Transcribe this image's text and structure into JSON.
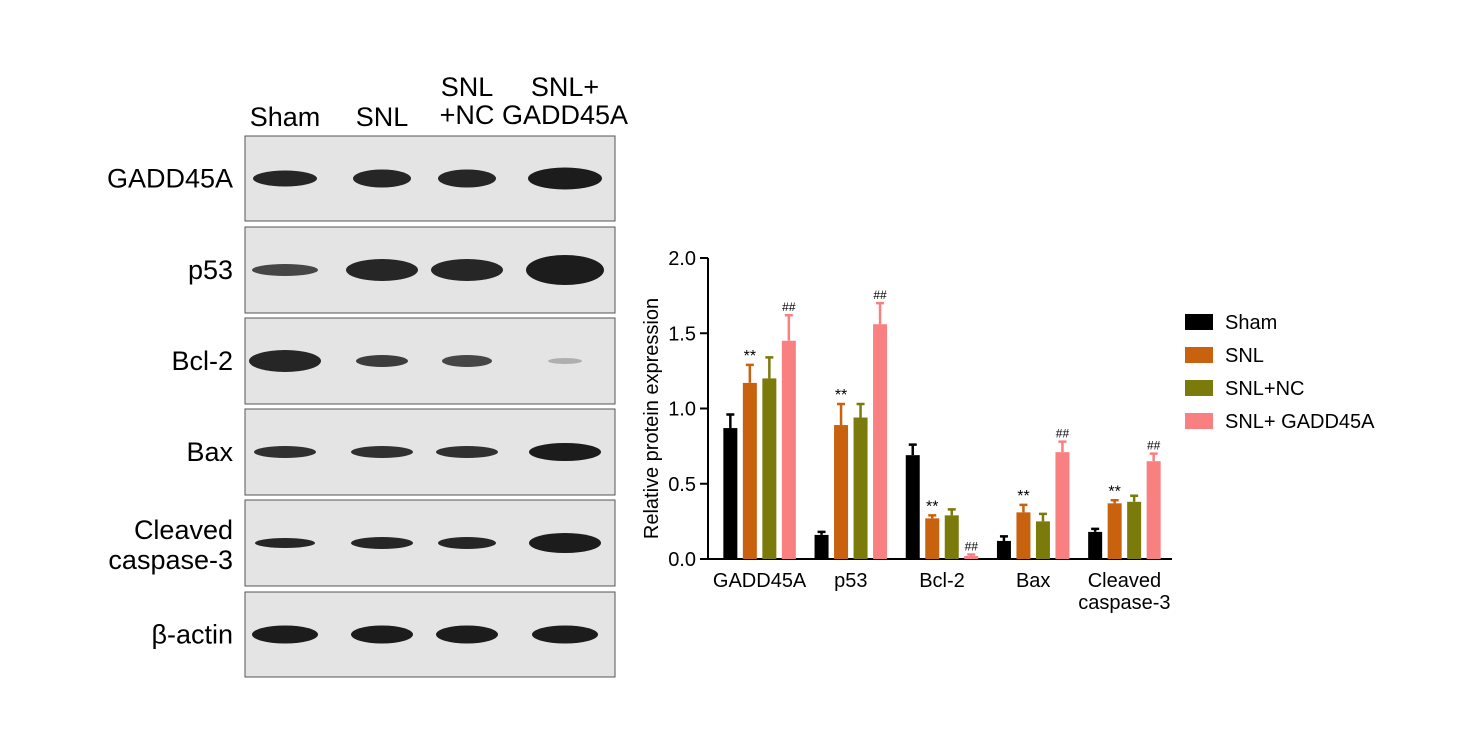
{
  "blot": {
    "lanes": [
      "Sham",
      "SNL",
      "SNL\n+NC",
      "SNL+\nGADD45A"
    ],
    "proteins": [
      "GADD45A",
      "p53",
      "Bcl-2",
      "Bax",
      "Cleaved\ncaspase-3",
      "β-actin"
    ]
  },
  "chart_data": {
    "type": "bar",
    "y_label": "Relative protein expression",
    "categories": [
      "GADD45A",
      "p53",
      "Bcl-2",
      "Bax",
      "Cleaved\ncaspase-3"
    ],
    "ylim": [
      0,
      2
    ],
    "yticks": [
      {
        "value": 0,
        "label": "0.0"
      },
      {
        "value": 0.5,
        "label": "0.5"
      },
      {
        "value": 1,
        "label": "1.0"
      },
      {
        "value": 1.5,
        "label": "1.5"
      },
      {
        "value": 2,
        "label": "2.0"
      }
    ],
    "series": [
      {
        "name": "Sham",
        "color": "#000000",
        "values": [
          0.87,
          0.16,
          0.69,
          0.12,
          0.18
        ],
        "errors": [
          0.09,
          0.02,
          0.07,
          0.03,
          0.02
        ]
      },
      {
        "name": "SNL",
        "color": "#c8620f",
        "values": [
          1.17,
          0.89,
          0.27,
          0.31,
          0.37
        ],
        "errors": [
          0.12,
          0.14,
          0.02,
          0.05,
          0.02
        ],
        "annotations": [
          "**",
          "**",
          "**",
          "**",
          "**"
        ]
      },
      {
        "name": "SNL+NC",
        "color": "#7b7b0c",
        "values": [
          1.2,
          0.94,
          0.29,
          0.25,
          0.38
        ],
        "errors": [
          0.14,
          0.09,
          0.04,
          0.05,
          0.04
        ]
      },
      {
        "name": "SNL+ GADD45A",
        "color": "#f88080",
        "values": [
          1.45,
          1.56,
          0.02,
          0.71,
          0.65
        ],
        "errors": [
          0.17,
          0.14,
          0.01,
          0.07,
          0.05
        ],
        "annotations": [
          "##",
          "##",
          "##",
          "##",
          "##"
        ]
      }
    ]
  }
}
